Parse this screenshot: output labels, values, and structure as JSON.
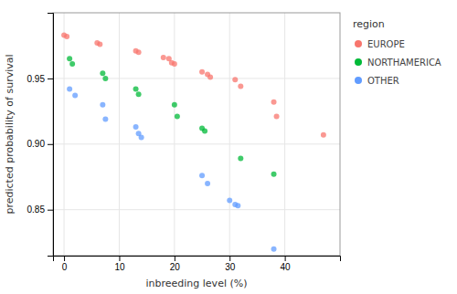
{
  "chart_data": {
    "type": "scatter",
    "xlabel": "inbreeding level (%)",
    "ylabel": "predicted probability of survival",
    "legend_title": "region",
    "legend": "right",
    "grid": true,
    "xlim": [
      -2,
      50
    ],
    "ylim": [
      0.815,
      1.0
    ],
    "xticks": [
      0,
      10,
      20,
      30,
      40
    ],
    "yticks": [
      0.85,
      {
        "value": 0.9,
        "label": "0.90"
      },
      0.95
    ],
    "series": [
      {
        "name": "EUROPE",
        "color": "#F8766D",
        "marker": "circle",
        "x": [
          0,
          0.5,
          6,
          6.5,
          13,
          13.5,
          18,
          19,
          19.5,
          20,
          25,
          26,
          26.5,
          31,
          32,
          38,
          38.5,
          47
        ],
        "values": [
          0.983,
          0.982,
          0.977,
          0.976,
          0.971,
          0.97,
          0.966,
          0.965,
          0.962,
          0.961,
          0.955,
          0.953,
          0.951,
          0.949,
          0.944,
          0.932,
          0.921,
          0.907
        ]
      },
      {
        "name": "NORTHAMERICA",
        "color": "#00BA38",
        "marker": "circle",
        "x": [
          1,
          1.5,
          7,
          7.5,
          13,
          13.5,
          20,
          20.5,
          25,
          25.5,
          32,
          38
        ],
        "values": [
          0.965,
          0.961,
          0.954,
          0.95,
          0.942,
          0.938,
          0.93,
          0.921,
          0.912,
          0.91,
          0.889,
          0.877
        ]
      },
      {
        "name": "OTHER",
        "color": "#619CFF",
        "marker": "circle",
        "x": [
          1,
          2,
          7,
          7.5,
          13,
          13.5,
          14,
          25,
          26,
          30,
          31,
          31.5,
          38
        ],
        "values": [
          0.942,
          0.937,
          0.93,
          0.919,
          0.913,
          0.908,
          0.905,
          0.876,
          0.87,
          0.857,
          0.854,
          0.853,
          0.82
        ]
      }
    ]
  }
}
